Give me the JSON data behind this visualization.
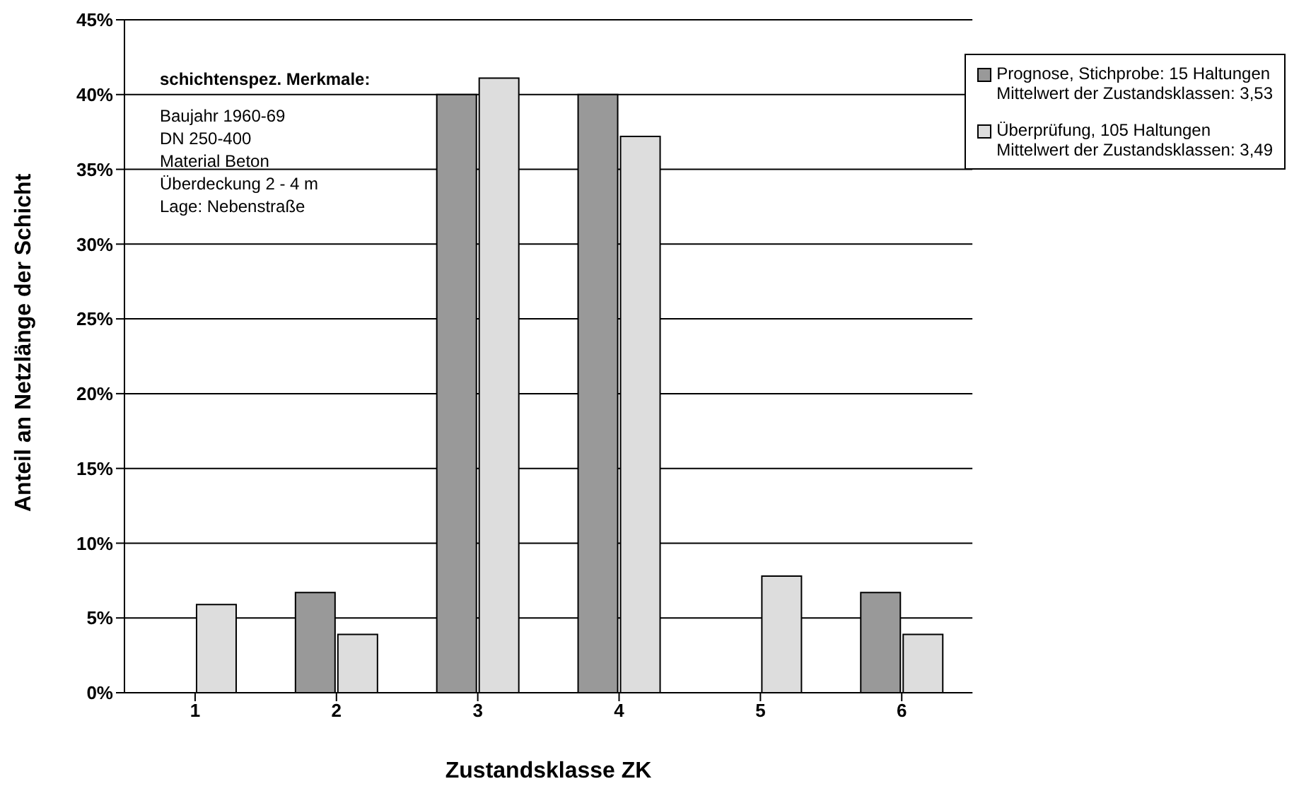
{
  "chart_data": {
    "type": "bar",
    "categories": [
      "1",
      "2",
      "3",
      "4",
      "5",
      "6"
    ],
    "xlabel": "Zustandsklasse ZK",
    "ylabel": "Anteil an Netzlänge der Schicht",
    "series": [
      {
        "name": "Prognose,  Stichprobe: 15 Haltungen\nMittelwert der Zustandsklassen: 3,53",
        "color": "#999999",
        "values": [
          0,
          6.7,
          40,
          40,
          0,
          6.7
        ]
      },
      {
        "name": "Überprüfung,  105 Haltungen\nMittelwert der Zustandsklassen: 3,49",
        "color": "#dddddd",
        "values": [
          5.9,
          3.9,
          41.1,
          37.2,
          7.8,
          3.9
        ]
      }
    ],
    "ylim": [
      0,
      45
    ],
    "yticks": [
      {
        "value": 0,
        "label": "0%"
      },
      {
        "value": 5,
        "label": "5%"
      },
      {
        "value": 10,
        "label": "10%"
      },
      {
        "value": 15,
        "label": "15%"
      },
      {
        "value": 20,
        "label": "20%"
      },
      {
        "value": 25,
        "label": "25%"
      },
      {
        "value": 30,
        "label": "30%"
      },
      {
        "value": 35,
        "label": "35%"
      },
      {
        "value": 40,
        "label": "40%"
      },
      {
        "value": 45,
        "label": "45%"
      }
    ],
    "annotations": [
      "schichtenspez. Merkmale:",
      "Baujahr 1960-69",
      "DN 250-400",
      "Material Beton",
      "Überdeckung 2 - 4 m",
      "Lage: Nebenstraße"
    ],
    "grid": "y",
    "legend": "top right"
  }
}
